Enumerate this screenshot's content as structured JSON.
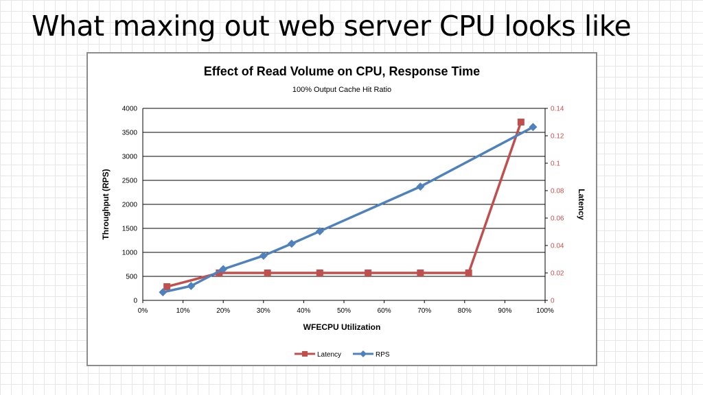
{
  "slide": {
    "title": "What maxing out web server CPU looks like"
  },
  "colors": {
    "latency": "#c0504d",
    "rps": "#4f81bd",
    "grid": "#000000",
    "right_axis_ticks": "#c0504d"
  },
  "chart_data": {
    "type": "line",
    "title": "Effect of Read Volume on CPU, Response Time",
    "subtitle": "100% Output Cache Hit Ratio",
    "xlabel": "WFECPU Utilization",
    "ylabel": "Throughput (RPS)",
    "y2label": "Latency",
    "xlim": [
      0,
      100
    ],
    "ylim": [
      0,
      4000
    ],
    "y2lim": [
      0,
      0.14
    ],
    "x_ticks": [
      "0%",
      "10%",
      "20%",
      "30%",
      "40%",
      "50%",
      "60%",
      "70%",
      "80%",
      "90%",
      "100%"
    ],
    "y_ticks": [
      "0",
      "500",
      "1000",
      "1500",
      "2000",
      "2500",
      "3000",
      "3500",
      "4000"
    ],
    "y2_ticks": [
      "0",
      "0.02",
      "0.04",
      "0.06",
      "0.08",
      "0.1",
      "0.12",
      "0.14"
    ],
    "grid": "horizontal",
    "legend_position": "bottom",
    "series": [
      {
        "name": "Latency",
        "axis": "right",
        "marker": "square",
        "x": [
          6,
          19,
          31,
          44,
          56,
          69,
          81,
          94
        ],
        "y": [
          0.01,
          0.02,
          0.02,
          0.02,
          0.02,
          0.02,
          0.02,
          0.13
        ]
      },
      {
        "name": "RPS",
        "axis": "left",
        "marker": "diamond",
        "x": [
          5,
          12,
          20,
          30,
          37,
          44,
          69,
          97
        ],
        "y": [
          170,
          300,
          650,
          930,
          1180,
          1440,
          2370,
          3610
        ]
      }
    ]
  }
}
